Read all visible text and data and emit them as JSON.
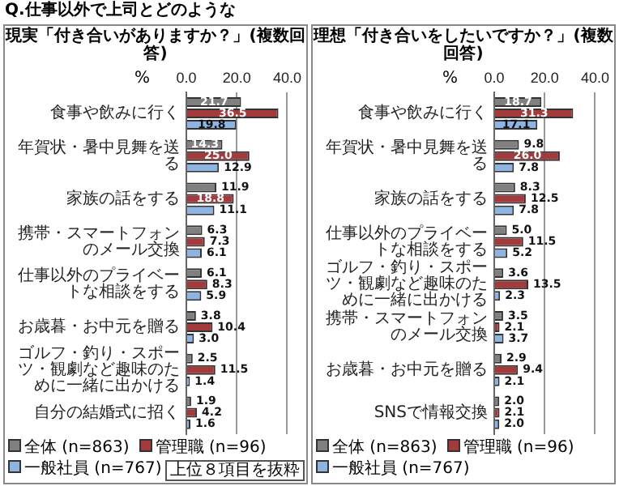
{
  "chart_data": [
    {
      "type": "bar",
      "orientation": "horizontal",
      "title": "Q.仕事以外で上司とどのような",
      "subtitle": "現実「付き合いがありますか？」(複数回答)",
      "xlabel": "%",
      "categories": [
        "食事や飲みに行く",
        "年賀状・暑中見舞を送る",
        "家族の話をする",
        "携帯・スマートフォンのメール交換",
        "仕事以外のプライベートな相談をする",
        "お歳暮・お中元を贈る",
        "ゴルフ・釣り・スポーツ・観劇など趣味のために一緒に出かける",
        "自分の結婚式に招く"
      ],
      "series": [
        {
          "name": "全体 (n=863)",
          "color": "#808080",
          "values": [
            21.7,
            14.3,
            11.9,
            6.3,
            6.1,
            3.8,
            2.5,
            1.9
          ],
          "value_labels": [
            "21.7",
            "14.3",
            "11.9",
            "6.3",
            "6.1",
            "3.8",
            "2.5",
            "1.9"
          ]
        },
        {
          "name": "管理職 (n=96)",
          "color": "#a33a3c",
          "values": [
            36.5,
            25.0,
            18.8,
            7.3,
            8.3,
            10.4,
            11.5,
            4.2
          ],
          "value_labels": [
            "36.5",
            "25.0",
            "18.8",
            "7.3",
            "8.3",
            "10.4",
            "11.5",
            "4.2"
          ]
        },
        {
          "name": "一般社員 (n=767)",
          "color": "#8db4e2",
          "values": [
            19.8,
            12.9,
            11.1,
            6.1,
            5.9,
            3.0,
            1.4,
            1.6
          ],
          "value_labels": [
            "19.8",
            "12.9",
            "11.1",
            "6.1",
            "5.9",
            "3.0",
            "1.4",
            "1.6"
          ]
        }
      ],
      "xlim": [
        0,
        40
      ],
      "xticks": [
        {
          "value": 0,
          "label": "0.0"
        },
        {
          "value": 20,
          "label": "20.0"
        },
        {
          "value": 40,
          "label": "40.0"
        }
      ],
      "grid": "x",
      "legend": "bottom",
      "annotations": [
        "上位８項目を抜粋"
      ]
    },
    {
      "type": "bar",
      "orientation": "horizontal",
      "title": "理想「付き合いをしたいですか？」(複数回答)",
      "xlabel": "%",
      "categories": [
        "食事や飲みに行く",
        "年賀状・暑中見舞を送る",
        "家族の話をする",
        "仕事以外のプライベートな相談をする",
        "ゴルフ・釣り・スポーツ・観劇など趣味のために一緒に出かける",
        "携帯・スマートフォンのメール交換",
        "お歳暮・お中元を贈る",
        "SNSで情報交換"
      ],
      "series": [
        {
          "name": "全体 (n=863)",
          "color": "#808080",
          "values": [
            18.7,
            9.8,
            8.3,
            5.0,
            3.6,
            3.5,
            2.9,
            2.0
          ],
          "value_labels": [
            "18.7",
            "9.8",
            "8.3",
            "5.0",
            "3.6",
            "3.5",
            "2.9",
            "2.0"
          ]
        },
        {
          "name": "管理職 (n=96)",
          "color": "#a33a3c",
          "values": [
            31.3,
            26.0,
            12.5,
            11.5,
            13.5,
            2.1,
            9.4,
            2.1
          ],
          "value_labels": [
            "31.3",
            "26.0",
            "12.5",
            "11.5",
            "13.5",
            "2.1",
            "9.4",
            "2.1"
          ]
        },
        {
          "name": "一般社員 (n=767)",
          "color": "#8db4e2",
          "values": [
            17.1,
            7.8,
            7.8,
            5.2,
            2.3,
            3.7,
            2.1,
            2.0
          ],
          "value_labels": [
            "17.1",
            "7.8",
            "7.8",
            "5.2",
            "2.3",
            "3.7",
            "2.1",
            "2.0"
          ]
        }
      ],
      "xlim": [
        0,
        40
      ],
      "xticks": [
        {
          "value": 0,
          "label": "0.0"
        },
        {
          "value": 20,
          "label": "20.0"
        },
        {
          "value": 40,
          "label": "40.0"
        }
      ],
      "grid": "x",
      "legend": "bottom"
    }
  ]
}
